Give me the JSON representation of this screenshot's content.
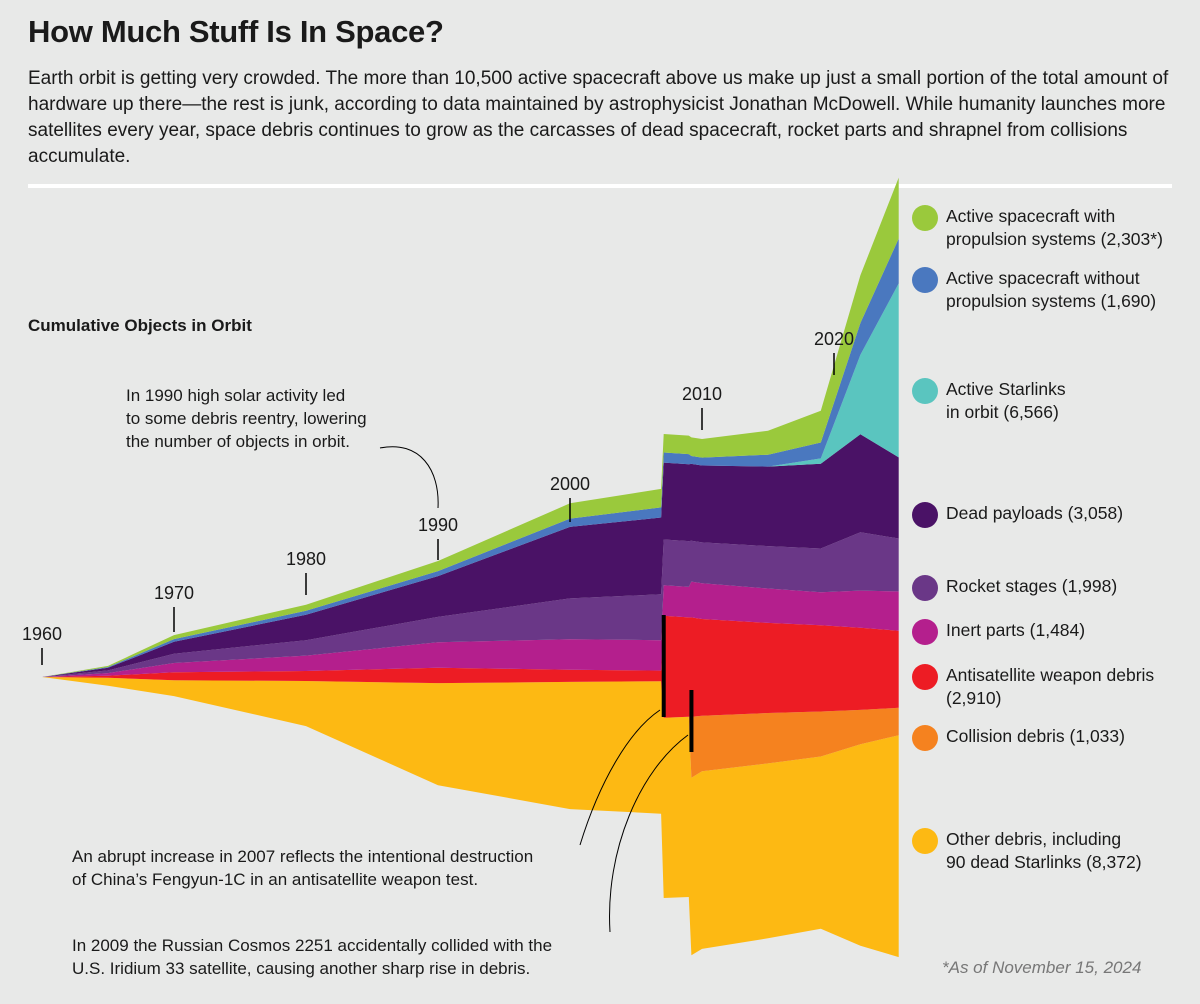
{
  "title": "How Much Stuff Is In Space?",
  "intro": "Earth orbit is getting very crowded. The more than 10,500 active spacecraft above us make up just a small portion of the total amount of hardware up there—the rest is junk, according to data maintained by astrophysicist Jonathan McDowell. While humanity launches more satellites every year, space debris continues to grow as the carcasses of dead spacecraft, rocket parts and shrapnel from collisions accumulate.",
  "footnote": "*As of November 15, 2024",
  "chart_data": {
    "type": "area",
    "title": "Cumulative Objects in Orbit",
    "x_ticks": [
      "1960",
      "1970",
      "1980",
      "1990",
      "2000",
      "2010",
      "2020"
    ],
    "xlim": [
      1960,
      2024.9
    ],
    "x": [
      1960,
      1965,
      1970,
      1980,
      1990,
      2000,
      2006.9,
      2007.1,
      2009,
      2009.2,
      2010,
      2015,
      2019,
      2022,
      2024.9
    ],
    "series": [
      {
        "name": "Other debris, including 90 dead Starlinks (8,372)",
        "color": "#fdb913",
        "values": [
          0,
          300,
          600,
          1700,
          3850,
          4800,
          5000,
          6800,
          6800,
          6700,
          6700,
          6600,
          6500,
          7600,
          8372
        ]
      },
      {
        "name": "Collision debris (1,033)",
        "color": "#f5821f",
        "values": [
          0,
          0,
          0,
          0,
          0,
          0,
          0,
          0,
          0,
          2300,
          2100,
          1900,
          1700,
          1300,
          1033
        ]
      },
      {
        "name": "Antisatellite weapon debris (2,910)",
        "color": "#ed1c24",
        "values": [
          0,
          80,
          300,
          380,
          580,
          460,
          400,
          3850,
          3750,
          3750,
          3650,
          3400,
          3250,
          3100,
          2910
        ]
      },
      {
        "name": "Inert parts (1,484)",
        "color": "#b41f8d",
        "values": [
          0,
          100,
          350,
          580,
          960,
          1150,
          1150,
          1150,
          1150,
          1350,
          1350,
          1300,
          1250,
          1400,
          1484
        ]
      },
      {
        "name": "Rocket stages (1,998)",
        "color": "#6a3787",
        "values": [
          0,
          100,
          350,
          580,
          960,
          1540,
          1730,
          1730,
          1730,
          1540,
          1540,
          1600,
          1650,
          2200,
          1998
        ]
      },
      {
        "name": "Dead payloads (3,058)",
        "color": "#4a1266",
        "values": [
          0,
          100,
          450,
          960,
          1540,
          2700,
          2900,
          2900,
          2900,
          2900,
          2900,
          3000,
          3200,
          3700,
          3058
        ]
      },
      {
        "name": "Active Starlinks in orbit (6,566)",
        "color": "#5ac5bf",
        "values": [
          0,
          0,
          0,
          0,
          0,
          0,
          0,
          0,
          0,
          0,
          0,
          0,
          200,
          3000,
          6566
        ]
      },
      {
        "name": "Active spacecraft without propulsion systems (1,690)",
        "color": "#4a78bf",
        "values": [
          0,
          30,
          100,
          150,
          190,
          310,
          380,
          380,
          380,
          300,
          300,
          450,
          600,
          1200,
          1690
        ]
      },
      {
        "name": "Active spacecraft with propulsion systems (2,303*)",
        "color": "#9ac93c",
        "values": [
          0,
          40,
          150,
          230,
          380,
          580,
          700,
          700,
          700,
          700,
          700,
          900,
          1200,
          1800,
          2303
        ]
      }
    ],
    "annotations": [
      "In 1990 high solar activity led\nto some debris reentry, lowering\nthe number of objects in orbit.",
      "An abrupt increase in 2007 reflects the intentional destruction\nof China’s Fengyun-1C in an antisatellite weapon test.",
      "In 2009 the Russian Cosmos 2251 accidentally collided with the\nU.S. Iridium 33 satellite, causing another sharp rise in debris."
    ],
    "legend_placement": "right"
  }
}
